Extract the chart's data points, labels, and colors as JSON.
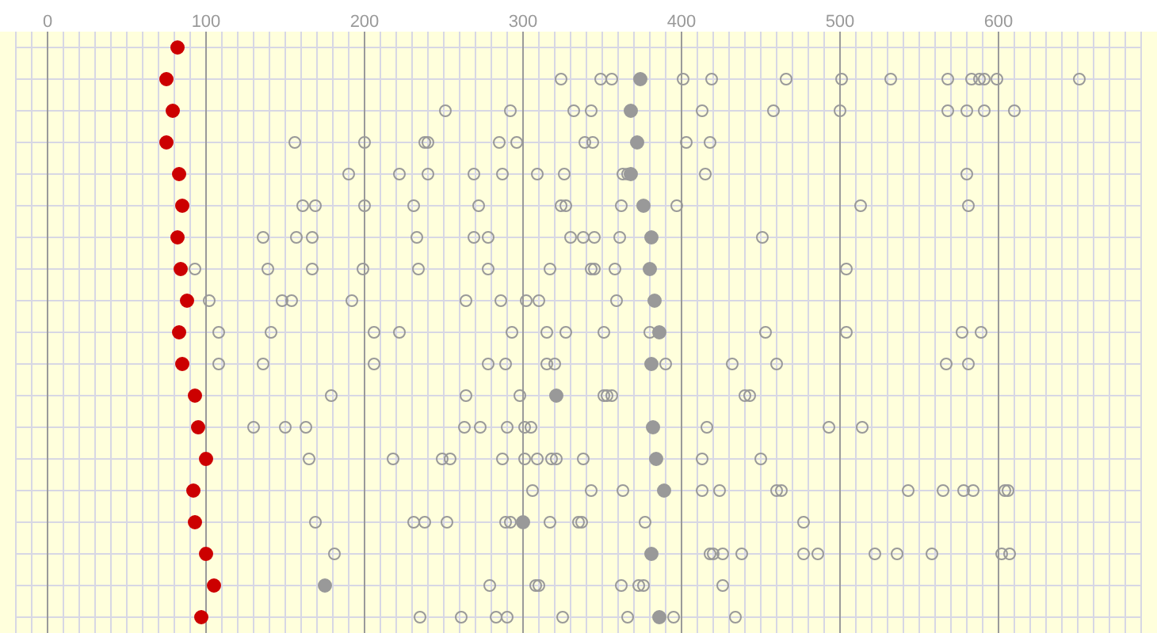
{
  "chart_data": {
    "type": "scatter",
    "orientation": "horizontal",
    "tick_labels": "x",
    "grid": true,
    "marker": "circle",
    "categories": [
      null,
      null,
      null,
      null,
      null,
      null,
      null,
      null,
      null,
      null,
      null,
      null,
      null,
      null,
      null,
      null,
      null,
      null,
      null
    ],
    "xlim": [
      -20,
      690
    ],
    "xticks": [
      {
        "value": -20,
        "label": null
      },
      {
        "value": -10,
        "label": null
      },
      0,
      {
        "value": 10,
        "label": null
      },
      {
        "value": 20,
        "label": null
      },
      {
        "value": 30,
        "label": null
      },
      {
        "value": 40,
        "label": null
      },
      {
        "value": 50,
        "label": null
      },
      {
        "value": 60,
        "label": null
      },
      {
        "value": 70,
        "label": null
      },
      {
        "value": 80,
        "label": null
      },
      {
        "value": 90,
        "label": null
      },
      100,
      {
        "value": 110,
        "label": null
      },
      {
        "value": 120,
        "label": null
      },
      {
        "value": 130,
        "label": null
      },
      {
        "value": 140,
        "label": null
      },
      {
        "value": 150,
        "label": null
      },
      {
        "value": 160,
        "label": null
      },
      {
        "value": 170,
        "label": null
      },
      {
        "value": 180,
        "label": null
      },
      {
        "value": 190,
        "label": null
      },
      200,
      {
        "value": 210,
        "label": null
      },
      {
        "value": 220,
        "label": null
      },
      {
        "value": 230,
        "label": null
      },
      {
        "value": 240,
        "label": null
      },
      {
        "value": 250,
        "label": null
      },
      {
        "value": 260,
        "label": null
      },
      {
        "value": 270,
        "label": null
      },
      {
        "value": 280,
        "label": null
      },
      {
        "value": 290,
        "label": null
      },
      300,
      {
        "value": 310,
        "label": null
      },
      {
        "value": 320,
        "label": null
      },
      {
        "value": 330,
        "label": null
      },
      {
        "value": 340,
        "label": null
      },
      {
        "value": 350,
        "label": null
      },
      {
        "value": 360,
        "label": null
      },
      {
        "value": 370,
        "label": null
      },
      {
        "value": 380,
        "label": null
      },
      {
        "value": 390,
        "label": null
      },
      400,
      {
        "value": 410,
        "label": null
      },
      {
        "value": 420,
        "label": null
      },
      {
        "value": 430,
        "label": null
      },
      {
        "value": 440,
        "label": null
      },
      {
        "value": 450,
        "label": null
      },
      {
        "value": 460,
        "label": null
      },
      {
        "value": 470,
        "label": null
      },
      {
        "value": 480,
        "label": null
      },
      {
        "value": 490,
        "label": null
      },
      500,
      {
        "value": 510,
        "label": null
      },
      {
        "value": 520,
        "label": null
      },
      {
        "value": 530,
        "label": null
      },
      {
        "value": 540,
        "label": null
      },
      {
        "value": 550,
        "label": null
      },
      {
        "value": 560,
        "label": null
      },
      {
        "value": 570,
        "label": null
      },
      {
        "value": 580,
        "label": null
      },
      {
        "value": 590,
        "label": null
      },
      600,
      {
        "value": 610,
        "label": null
      },
      {
        "value": 620,
        "label": null
      },
      {
        "value": 630,
        "label": null
      },
      {
        "value": 640,
        "label": null
      },
      {
        "value": 650,
        "label": null
      },
      {
        "value": 660,
        "label": null
      },
      {
        "value": 670,
        "label": null
      },
      {
        "value": 680,
        "label": null
      },
      {
        "value": 690,
        "label": null
      }
    ],
    "series": [
      {
        "color": "#cc0000",
        "values": [
          82,
          75,
          79,
          75,
          83,
          85,
          82,
          84,
          88,
          83,
          85,
          93,
          95,
          100,
          92,
          93,
          100,
          105,
          97
        ]
      },
      {
        "color": "#999999",
        "values": [
          null,
          374,
          368,
          372,
          368,
          376,
          381,
          380,
          383,
          386,
          381,
          321,
          382,
          384,
          389,
          300,
          381,
          175,
          386
        ]
      },
      {
        "color": "#999999",
        "values": [
          null,
          324,
          251,
          156,
          190,
          161,
          136,
          93,
          102,
          108,
          108,
          179,
          130,
          165,
          306,
          169,
          181,
          279,
          235
        ]
      },
      {
        "color": "#999999",
        "values": [
          null,
          349,
          292,
          200,
          222,
          169,
          157,
          139,
          148,
          141,
          136,
          264,
          150,
          218,
          343,
          231,
          418,
          308,
          261
        ]
      },
      {
        "color": "#999999",
        "values": [
          null,
          356,
          332,
          238,
          240,
          200,
          167,
          167,
          154,
          206,
          206,
          298,
          163,
          249,
          363,
          238,
          420,
          310,
          283
        ]
      },
      {
        "color": "#999999",
        "values": [
          null,
          401,
          343,
          240,
          269,
          231,
          233,
          199,
          192,
          222,
          278,
          351,
          263,
          254,
          413,
          252,
          426,
          362,
          290
        ]
      },
      {
        "color": "#999999",
        "values": [
          null,
          419,
          413,
          285,
          287,
          272,
          269,
          234,
          264,
          293,
          289,
          353,
          273,
          287,
          424,
          289,
          438,
          373,
          325
        ]
      },
      {
        "color": "#999999",
        "values": [
          null,
          466,
          458,
          296,
          309,
          324,
          278,
          278,
          286,
          315,
          315,
          356,
          290,
          301,
          460,
          292,
          477,
          376,
          366
        ]
      },
      {
        "color": "#999999",
        "values": [
          null,
          501,
          500,
          339,
          326,
          327,
          330,
          317,
          302,
          327,
          320,
          440,
          301,
          309,
          463,
          317,
          486,
          426,
          395
        ]
      },
      {
        "color": "#999999",
        "values": [
          null,
          532,
          568,
          344,
          363,
          362,
          338,
          343,
          310,
          351,
          390,
          443,
          305,
          318,
          543,
          335,
          522,
          null,
          434
        ]
      },
      {
        "color": "#999999",
        "values": [
          null,
          568,
          580,
          403,
          366,
          397,
          345,
          345,
          359,
          380,
          432,
          null,
          416,
          321,
          565,
          337,
          536,
          null,
          null
        ]
      },
      {
        "color": "#999999",
        "values": [
          null,
          583,
          591,
          418,
          415,
          513,
          361,
          358,
          null,
          453,
          460,
          null,
          493,
          338,
          578,
          377,
          558,
          null,
          null
        ]
      },
      {
        "color": "#999999",
        "values": [
          null,
          588,
          610,
          null,
          580,
          581,
          451,
          504,
          null,
          504,
          567,
          null,
          514,
          413,
          584,
          477,
          602,
          null,
          null
        ]
      },
      {
        "color": "#999999",
        "values": [
          null,
          591,
          null,
          null,
          null,
          null,
          null,
          null,
          null,
          577,
          581,
          null,
          null,
          450,
          604,
          null,
          607,
          null,
          null
        ]
      },
      {
        "color": "#999999",
        "values": [
          null,
          599,
          null,
          null,
          null,
          null,
          null,
          null,
          null,
          589,
          null,
          null,
          null,
          null,
          606,
          null,
          null,
          null,
          null
        ]
      },
      {
        "color": "#999999",
        "values": [
          null,
          651,
          null,
          null,
          null,
          null,
          null,
          null,
          null,
          null,
          null,
          null,
          null,
          null,
          null,
          null,
          null,
          null,
          null
        ]
      }
    ]
  }
}
